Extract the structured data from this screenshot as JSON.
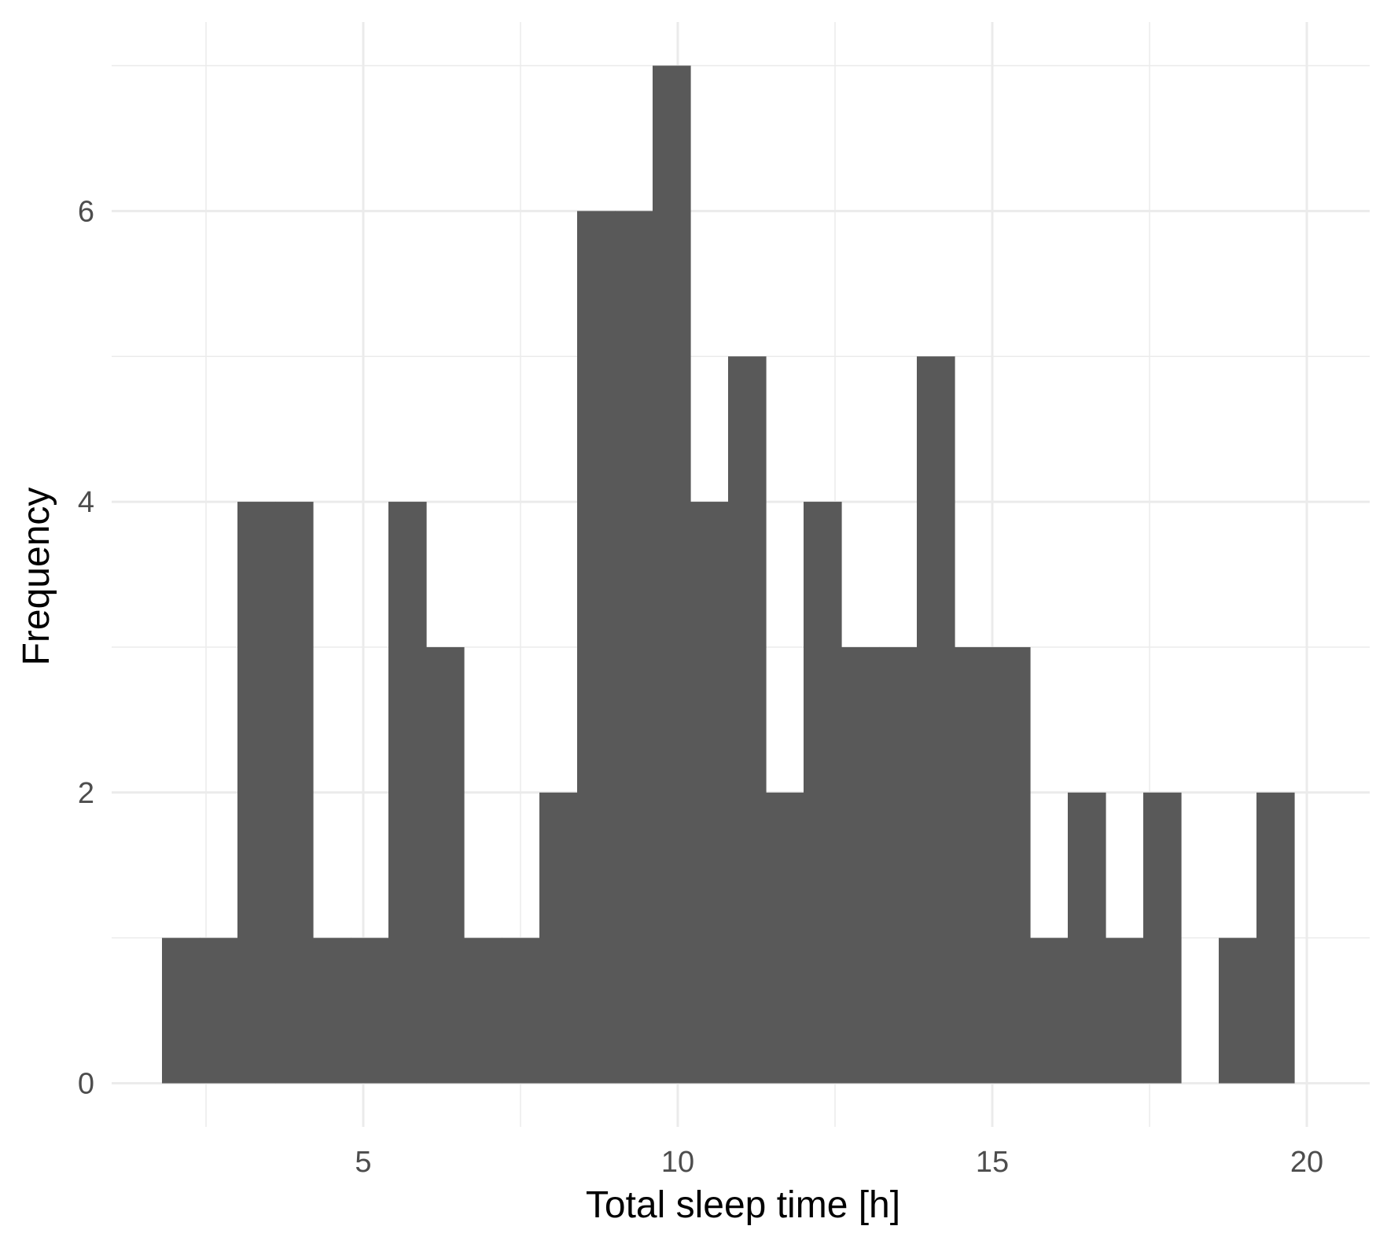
{
  "chart_data": {
    "type": "bar",
    "subtype": "histogram",
    "title": "",
    "xlabel": "Total sleep time [h]",
    "ylabel": "Frequency",
    "xlim": [
      1.0,
      21.0
    ],
    "ylim": [
      -0.3,
      7.3
    ],
    "xticks": [
      5,
      10,
      15,
      20
    ],
    "yticks": [
      0,
      2,
      4,
      6
    ],
    "grid": true,
    "bin_width": 0.6,
    "bin_start": 1.8,
    "values": [
      1,
      1,
      4,
      4,
      1,
      1,
      4,
      3,
      1,
      1,
      2,
      6,
      6,
      7,
      4,
      5,
      2,
      4,
      3,
      3,
      5,
      3,
      3,
      1,
      2,
      1,
      2,
      0,
      1,
      2
    ],
    "bar_color": "#595959",
    "grid_color": "#ebebeb"
  }
}
